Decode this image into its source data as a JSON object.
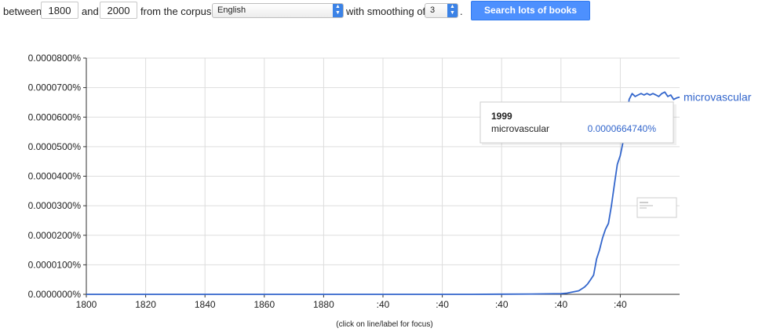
{
  "controls": {
    "between_label": "between",
    "start_year": "1800",
    "and_label": "and",
    "end_year": "2000",
    "corpus_label": "from the corpus",
    "corpus_value": "English",
    "smoothing_label": "with smoothing of",
    "smoothing_value": "3",
    "period": ".",
    "search_button": "Search lots of books"
  },
  "chart_data": {
    "type": "line",
    "x_tick_labels": [
      "1800",
      "1820",
      "1840",
      "1860",
      "1880",
      ":40",
      ":40",
      ":40",
      ":40",
      ":40"
    ],
    "y_tick_labels": [
      "0.0000000%",
      "0.0000100%",
      "0.0000200%",
      "0.0000300%",
      "0.0000400%",
      "0.0000500%",
      "0.0000600%",
      "0.0000700%",
      "0.0000800%"
    ],
    "xlim": [
      1800,
      2000
    ],
    "ylim": [
      0,
      8e-05
    ],
    "grid": true,
    "series": [
      {
        "name": "microvascular",
        "color": "#3366cc",
        "x": [
          1800,
          1850,
          1900,
          1930,
          1940,
          1950,
          1955,
          1960,
          1962,
          1964,
          1966,
          1968,
          1969,
          1970,
          1971,
          1972,
          1973,
          1974,
          1975,
          1976,
          1977,
          1978,
          1979,
          1980,
          1981,
          1982,
          1983,
          1984,
          1985,
          1986,
          1987,
          1988,
          1989,
          1990,
          1991,
          1992,
          1993,
          1994,
          1995,
          1996,
          1997,
          1998,
          1999,
          2000
        ],
        "y": [
          0,
          0,
          0,
          0,
          5e-08,
          1e-07,
          1.5e-07,
          2e-07,
          4e-07,
          8e-07,
          1.2e-06,
          2.5e-06,
          3.5e-06,
          5e-06,
          6.5e-06,
          1.2e-05,
          1.5e-05,
          1.9e-05,
          2.2e-05,
          2.4e-05,
          3e-05,
          3.7e-05,
          4.4e-05,
          4.7e-05,
          5.2e-05,
          5.8e-05,
          6.6e-05,
          6.8e-05,
          6.7e-05,
          6.75e-05,
          6.8e-05,
          6.75e-05,
          6.8e-05,
          6.75e-05,
          6.8e-05,
          6.75e-05,
          6.7e-05,
          6.8e-05,
          6.85e-05,
          6.7e-05,
          6.75e-05,
          6.6e-05,
          6.65e-05,
          6.68e-05
        ]
      }
    ],
    "tooltip": {
      "year": "1999",
      "series_name": "microvascular",
      "value_text": "0.0000664740%"
    },
    "footnote": "(click on line/label for focus)"
  }
}
